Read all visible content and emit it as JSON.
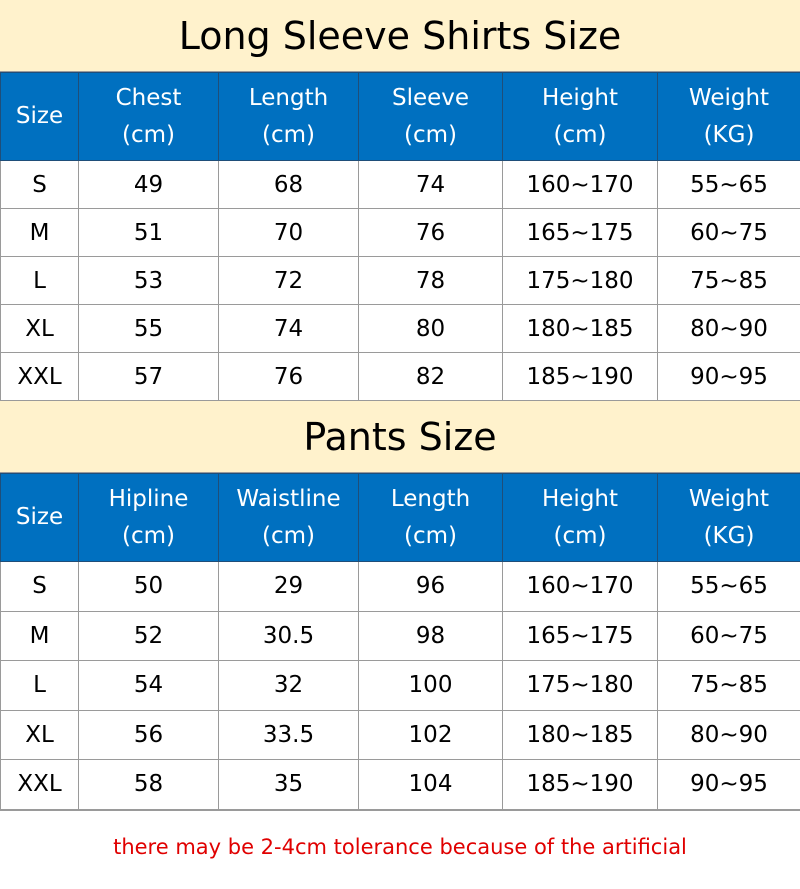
{
  "shirts": {
    "title": "Long Sleeve Shirts Size",
    "headers": [
      [
        "Size",
        ""
      ],
      [
        "Chest",
        "(cm)"
      ],
      [
        "Length",
        "(cm)"
      ],
      [
        "Sleeve",
        "(cm)"
      ],
      [
        "Height",
        "(cm)"
      ],
      [
        "Weight",
        "(KG)"
      ]
    ],
    "rows": [
      [
        "S",
        "49",
        "68",
        "74",
        "160~170",
        "55~65"
      ],
      [
        "M",
        "51",
        "70",
        "76",
        "165~175",
        "60~75"
      ],
      [
        "L",
        "53",
        "72",
        "78",
        "175~180",
        "75~85"
      ],
      [
        "XL",
        "55",
        "74",
        "80",
        "180~185",
        "80~90"
      ],
      [
        "XXL",
        "57",
        "76",
        "82",
        "185~190",
        "90~95"
      ]
    ]
  },
  "pants": {
    "title": "Pants Size",
    "headers": [
      [
        "Size",
        ""
      ],
      [
        "Hipline",
        "(cm)"
      ],
      [
        "Waistline",
        "(cm)"
      ],
      [
        "Length",
        "(cm)"
      ],
      [
        "Height",
        "(cm)"
      ],
      [
        "Weight",
        "(KG)"
      ]
    ],
    "rows": [
      [
        "S",
        "50",
        "29",
        "96",
        "160~170",
        "55~65"
      ],
      [
        "M",
        "52",
        "30.5",
        "98",
        "165~175",
        "60~75"
      ],
      [
        "L",
        "54",
        "32",
        "100",
        "175~180",
        "75~85"
      ],
      [
        "XL",
        "56",
        "33.5",
        "102",
        "180~185",
        "80~90"
      ],
      [
        "XXL",
        "58",
        "35",
        "104",
        "185~190",
        "90~95"
      ]
    ]
  },
  "footer_note": "there may be 2-4cm tolerance because of the artificial",
  "colors": {
    "header_bg": "#0070C0",
    "title_bg": "#FFF2CC",
    "note": "#E00000"
  }
}
